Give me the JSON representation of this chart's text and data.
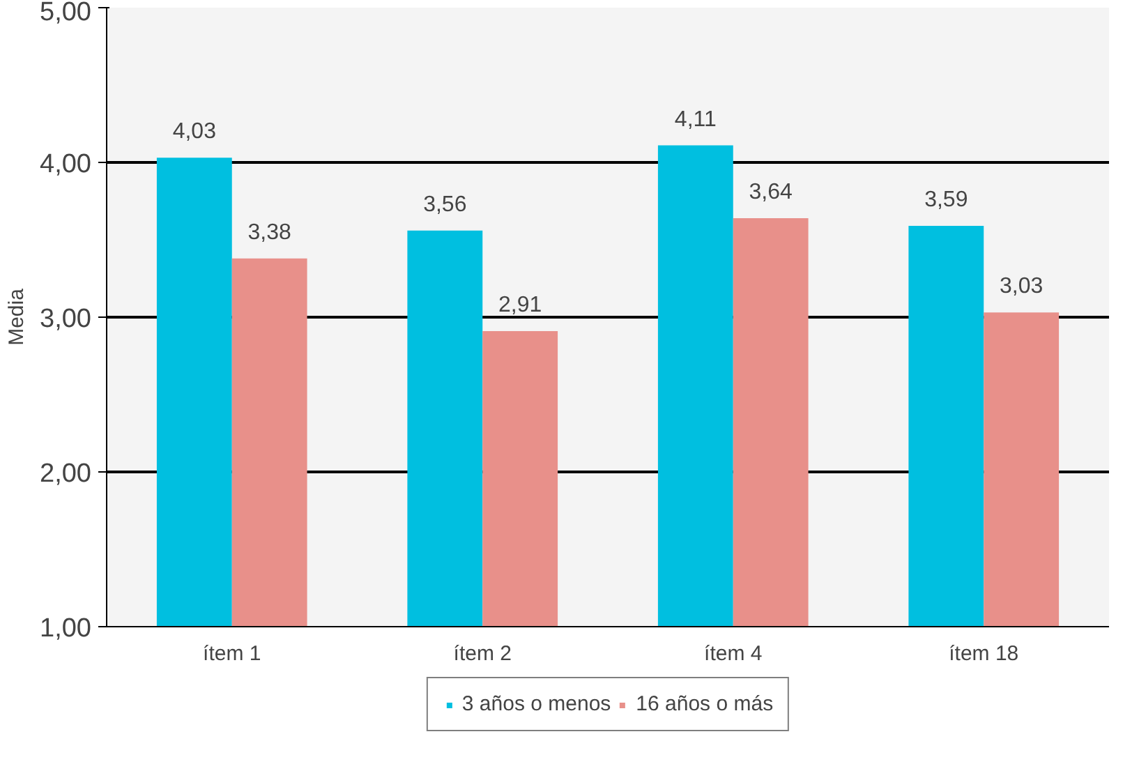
{
  "chart_data": {
    "type": "bar",
    "ylabel": "Media",
    "categories": [
      "ítem 1",
      "ítem 2",
      "ítem 4",
      "ítem 18"
    ],
    "series": [
      {
        "name": "3 años o menos",
        "color": "#00bfe0",
        "values": [
          4.03,
          3.56,
          4.11,
          3.59
        ],
        "value_labels": [
          "4,03",
          "3,56",
          "4,11",
          "3,59"
        ]
      },
      {
        "name": "16 años o más",
        "color": "#e8908a",
        "values": [
          3.38,
          2.91,
          3.64,
          3.03
        ],
        "value_labels": [
          "3,38",
          "2,91",
          "3,64",
          "3,03"
        ]
      }
    ],
    "ylim": [
      1,
      5
    ],
    "yticks": [
      {
        "value": 1,
        "label": "1,00"
      },
      {
        "value": 2,
        "label": "2,00"
      },
      {
        "value": 3,
        "label": "3,00"
      },
      {
        "value": 4,
        "label": "4,00"
      },
      {
        "value": 5,
        "label": "5,00"
      }
    ],
    "grid": "y",
    "legend": "bottom"
  }
}
